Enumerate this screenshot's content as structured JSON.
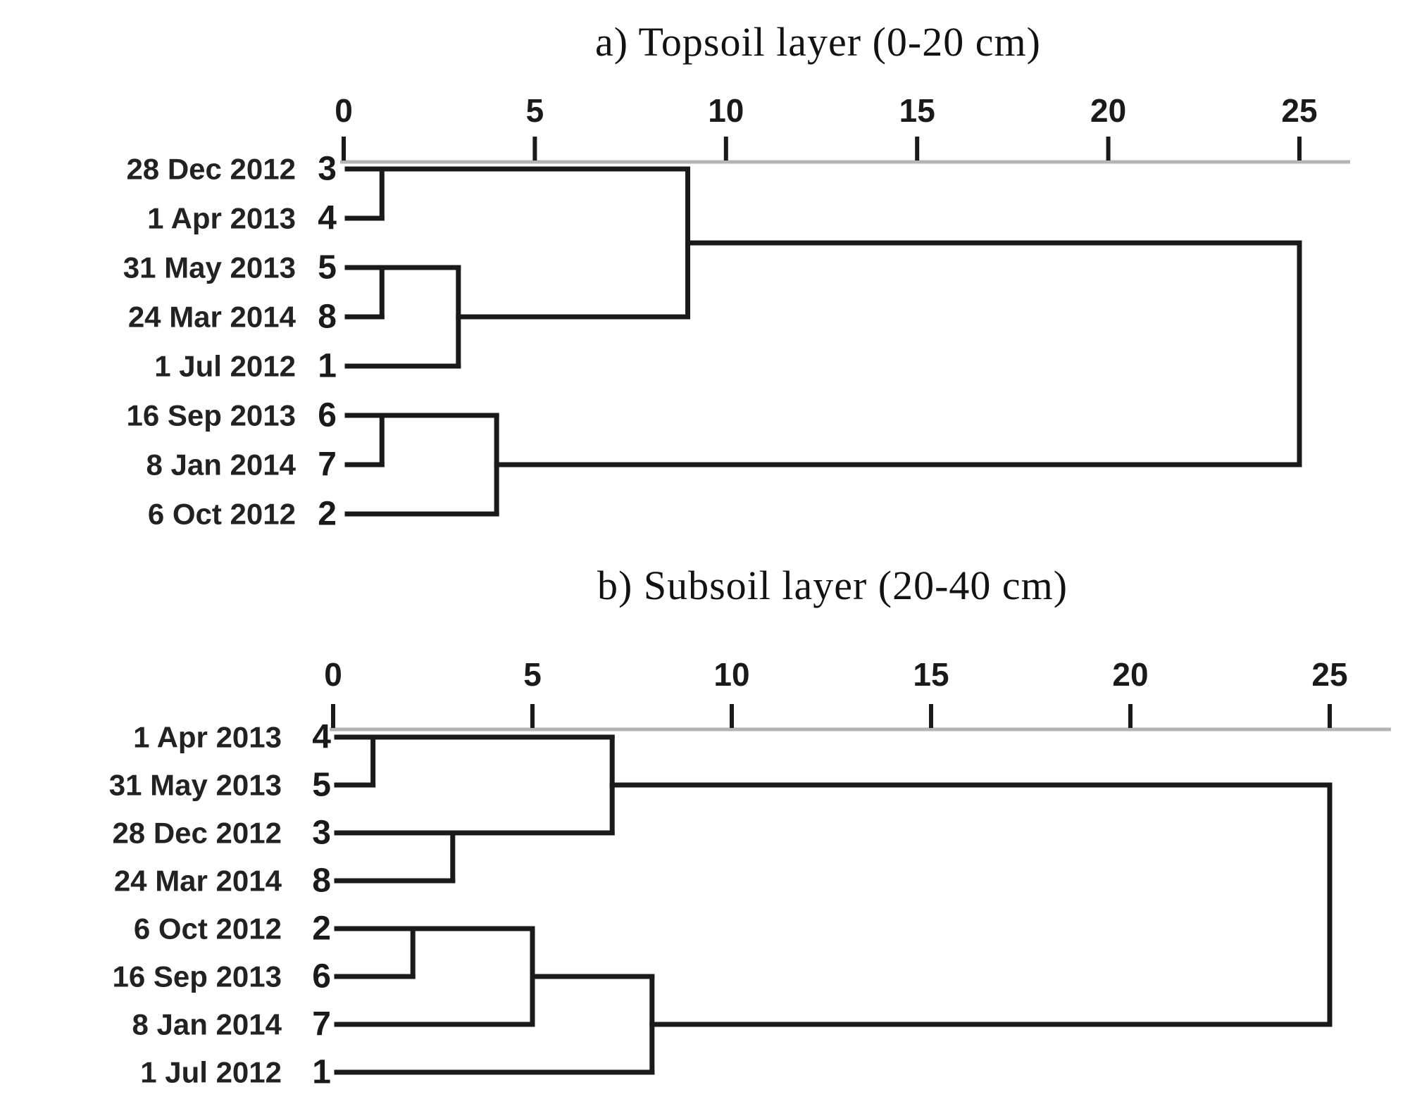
{
  "figure": {
    "background_color": "#ffffff",
    "line_color": "#1a1a1a",
    "axis_line_color": "#b4b4b4",
    "text_color": "#1a1a1a"
  },
  "chart_data": [
    {
      "type": "dendrogram",
      "title": "a) Topsoil layer (0-20 cm)",
      "orientation": "horizontal",
      "axis_position": "top",
      "axis_ticks": [
        0,
        5,
        10,
        15,
        20,
        25
      ],
      "xlim": [
        0,
        26.5
      ],
      "grid": false,
      "leaves": [
        {
          "case": "3",
          "label": "28 Dec 2012"
        },
        {
          "case": "4",
          "label": "1 Apr 2013"
        },
        {
          "case": "5",
          "label": "31 May 2013"
        },
        {
          "case": "8",
          "label": "24 Mar 2014"
        },
        {
          "case": "1",
          "label": "1 Jul 2012"
        },
        {
          "case": "6",
          "label": "16 Sep 2013"
        },
        {
          "case": "7",
          "label": "8 Jan 2014"
        },
        {
          "case": "2",
          "label": "6 Oct 2012"
        }
      ],
      "merges": [
        {
          "cluster": [
            "3",
            "4"
          ],
          "distance": 1
        },
        {
          "cluster": [
            "5",
            "8"
          ],
          "distance": 1
        },
        {
          "cluster": [
            [
              "5",
              "8"
            ],
            "1"
          ],
          "distance": 3
        },
        {
          "cluster": [
            [
              "3",
              "4"
            ],
            [
              "5",
              "8",
              "1"
            ]
          ],
          "distance": 9
        },
        {
          "cluster": [
            "6",
            "7"
          ],
          "distance": 1
        },
        {
          "cluster": [
            [
              "6",
              "7"
            ],
            "2"
          ],
          "distance": 4
        },
        {
          "cluster": [
            [
              "3",
              "4",
              "5",
              "8",
              "1"
            ],
            [
              "6",
              "7",
              "2"
            ]
          ],
          "distance": 25
        }
      ],
      "tree": {
        "d": 25,
        "c": [
          {
            "d": 9,
            "c": [
              {
                "d": 1,
                "c": [
                  "3",
                  "4"
                ]
              },
              {
                "d": 3,
                "c": [
                  {
                    "d": 1,
                    "c": [
                      "5",
                      "8"
                    ]
                  },
                  "1"
                ]
              }
            ]
          },
          {
            "d": 4,
            "c": [
              {
                "d": 1,
                "c": [
                  "6",
                  "7"
                ]
              },
              "2"
            ]
          }
        ]
      }
    },
    {
      "type": "dendrogram",
      "title": "b) Subsoil layer (20-40 cm)",
      "orientation": "horizontal",
      "axis_position": "top",
      "axis_ticks": [
        0,
        5,
        10,
        15,
        20,
        25
      ],
      "xlim": [
        0,
        26.5
      ],
      "grid": false,
      "leaves": [
        {
          "case": "4",
          "label": "1 Apr 2013"
        },
        {
          "case": "5",
          "label": "31 May 2013"
        },
        {
          "case": "3",
          "label": "28 Dec 2012"
        },
        {
          "case": "8",
          "label": "24 Mar 2014"
        },
        {
          "case": "2",
          "label": "6 Oct 2012"
        },
        {
          "case": "6",
          "label": "16 Sep 2013"
        },
        {
          "case": "7",
          "label": "8 Jan 2014"
        },
        {
          "case": "1",
          "label": "1 Jul 2012"
        }
      ],
      "merges": [
        {
          "cluster": [
            "4",
            "5"
          ],
          "distance": 1
        },
        {
          "cluster": [
            "3",
            "8"
          ],
          "distance": 3
        },
        {
          "cluster": [
            [
              "4",
              "5"
            ],
            [
              "3",
              "8"
            ]
          ],
          "distance": 7
        },
        {
          "cluster": [
            "2",
            "6"
          ],
          "distance": 2
        },
        {
          "cluster": [
            [
              "2",
              "6"
            ],
            "7"
          ],
          "distance": 5
        },
        {
          "cluster": [
            [
              "2",
              "6",
              "7"
            ],
            "1"
          ],
          "distance": 8
        },
        {
          "cluster": [
            [
              "4",
              "5",
              "3",
              "8"
            ],
            [
              "2",
              "6",
              "7",
              "1"
            ]
          ],
          "distance": 25
        }
      ],
      "tree": {
        "d": 25,
        "c": [
          {
            "d": 7,
            "c": [
              {
                "d": 1,
                "c": [
                  "4",
                  "5"
                ]
              },
              {
                "d": 3,
                "c": [
                  "3",
                  "8"
                ]
              }
            ]
          },
          {
            "d": 8,
            "c": [
              {
                "d": 5,
                "c": [
                  {
                    "d": 2,
                    "c": [
                      "2",
                      "6"
                    ]
                  },
                  "7"
                ]
              },
              "1"
            ]
          }
        ]
      }
    }
  ]
}
